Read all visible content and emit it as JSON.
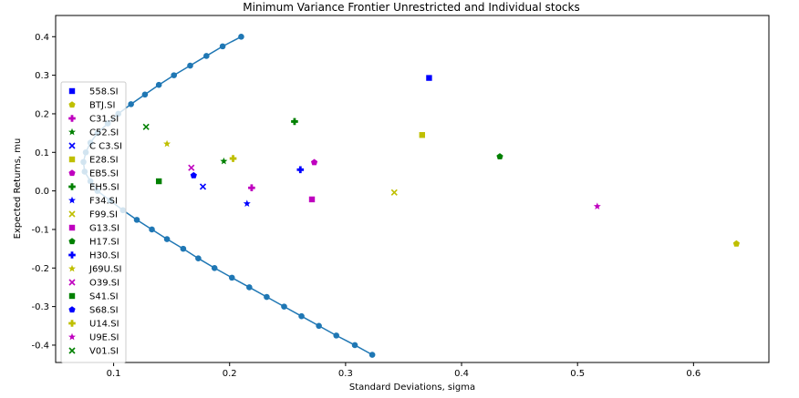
{
  "chart_data": {
    "type": "scatter",
    "title": "Minimum Variance Frontier Unrestricted and Individual stocks",
    "xlabel": "Standard Deviations, sigma",
    "ylabel": "Expected Returns, mu",
    "xlim": [
      0.05,
      0.665
    ],
    "ylim": [
      -0.445,
      0.455
    ],
    "xticks": [
      0.1,
      0.2,
      0.3,
      0.4,
      0.5,
      0.6
    ],
    "xtick_labels": [
      "0.1",
      "0.2",
      "0.3",
      "0.4",
      "0.5",
      "0.6"
    ],
    "yticks": [
      -0.4,
      -0.3,
      -0.2,
      -0.1,
      0.0,
      0.1,
      0.2,
      0.3,
      0.4
    ],
    "ytick_labels": [
      "-0.4",
      "-0.3",
      "-0.2",
      "-0.1",
      "0.0",
      "0.1",
      "0.2",
      "0.3",
      "0.4"
    ],
    "grid": false,
    "legend_position": "left",
    "frontier": {
      "color": "#1f77b4",
      "points": [
        [
          0.21,
          0.4
        ],
        [
          0.194,
          0.375
        ],
        [
          0.18,
          0.35
        ],
        [
          0.166,
          0.325
        ],
        [
          0.152,
          0.3
        ],
        [
          0.139,
          0.275
        ],
        [
          0.127,
          0.25
        ],
        [
          0.115,
          0.225
        ],
        [
          0.104,
          0.2
        ],
        [
          0.095,
          0.175
        ],
        [
          0.086,
          0.15
        ],
        [
          0.08,
          0.125
        ],
        [
          0.076,
          0.1
        ],
        [
          0.074,
          0.075
        ],
        [
          0.075,
          0.05
        ],
        [
          0.08,
          0.025
        ],
        [
          0.086,
          0.0
        ],
        [
          0.097,
          -0.025
        ],
        [
          0.108,
          -0.05
        ],
        [
          0.12,
          -0.075
        ],
        [
          0.133,
          -0.1
        ],
        [
          0.146,
          -0.125
        ],
        [
          0.16,
          -0.15
        ],
        [
          0.173,
          -0.175
        ],
        [
          0.187,
          -0.2
        ],
        [
          0.202,
          -0.225
        ],
        [
          0.217,
          -0.25
        ],
        [
          0.232,
          -0.275
        ],
        [
          0.247,
          -0.3
        ],
        [
          0.262,
          -0.325
        ],
        [
          0.277,
          -0.35
        ],
        [
          0.292,
          -0.375
        ],
        [
          0.308,
          -0.4
        ],
        [
          0.323,
          -0.425
        ]
      ]
    },
    "series": [
      {
        "name": "558.SI",
        "x": 0.372,
        "y": 0.293,
        "marker": "square",
        "color": "#0000ff"
      },
      {
        "name": "BTJ.SI",
        "x": 0.637,
        "y": -0.137,
        "marker": "pentagon",
        "color": "#bfbf00"
      },
      {
        "name": "C31.SI",
        "x": 0.219,
        "y": 0.008,
        "marker": "plus",
        "color": "#bf00bf"
      },
      {
        "name": "C52.SI",
        "x": 0.195,
        "y": 0.077,
        "marker": "star",
        "color": "#008000"
      },
      {
        "name": "C C3.SI",
        "x": 0.177,
        "y": 0.011,
        "marker": "x",
        "color": "#0000ff"
      },
      {
        "name": "E28.SI",
        "x": 0.366,
        "y": 0.145,
        "marker": "square",
        "color": "#bfbf00"
      },
      {
        "name": "EB5.SI",
        "x": 0.273,
        "y": 0.074,
        "marker": "pentagon",
        "color": "#bf00bf"
      },
      {
        "name": "EH5.SI",
        "x": 0.256,
        "y": 0.18,
        "marker": "plus",
        "color": "#008000"
      },
      {
        "name": "F34.SI",
        "x": 0.215,
        "y": -0.033,
        "marker": "star",
        "color": "#0000ff"
      },
      {
        "name": "F99.SI",
        "x": 0.342,
        "y": -0.004,
        "marker": "x",
        "color": "#bfbf00"
      },
      {
        "name": "G13.SI",
        "x": 0.271,
        "y": -0.022,
        "marker": "square",
        "color": "#bf00bf"
      },
      {
        "name": "H17.SI",
        "x": 0.433,
        "y": 0.089,
        "marker": "pentagon",
        "color": "#008000"
      },
      {
        "name": "H30.SI",
        "x": 0.261,
        "y": 0.055,
        "marker": "plus",
        "color": "#0000ff"
      },
      {
        "name": "J69U.SI",
        "x": 0.146,
        "y": 0.122,
        "marker": "star",
        "color": "#bfbf00"
      },
      {
        "name": "O39.SI",
        "x": 0.167,
        "y": 0.06,
        "marker": "x",
        "color": "#bf00bf"
      },
      {
        "name": "S41.SI",
        "x": 0.139,
        "y": 0.025,
        "marker": "square",
        "color": "#008000"
      },
      {
        "name": "S68.SI",
        "x": 0.169,
        "y": 0.04,
        "marker": "pentagon",
        "color": "#0000ff"
      },
      {
        "name": "U14.SI",
        "x": 0.203,
        "y": 0.084,
        "marker": "plus",
        "color": "#bfbf00"
      },
      {
        "name": "U9E.SI",
        "x": 0.517,
        "y": -0.04,
        "marker": "star",
        "color": "#bf00bf"
      },
      {
        "name": "V01.SI",
        "x": 0.128,
        "y": 0.166,
        "marker": "x",
        "color": "#008000"
      }
    ]
  }
}
